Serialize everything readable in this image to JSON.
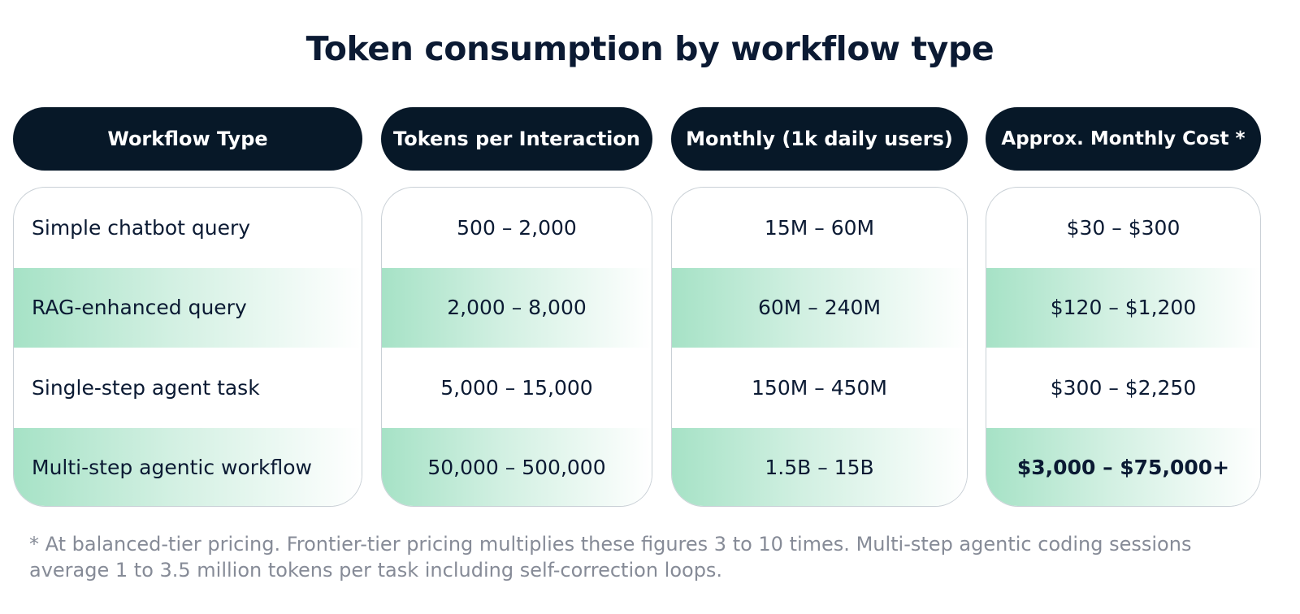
{
  "title": "Token consumption by workflow type",
  "chart_data": {
    "type": "table",
    "title": "Token consumption by workflow type",
    "columns": [
      "Workflow Type",
      "Tokens per Interaction",
      "Monthly (1k daily users)",
      "Approx. Monthly Cost *"
    ],
    "rows": [
      [
        "Simple chatbot query",
        "500 – 2,000",
        "15M – 60M",
        "$30 – $300"
      ],
      [
        "RAG-enhanced query",
        "2,000 – 8,000",
        "60M – 240M",
        "$120 – $1,200"
      ],
      [
        "Single-step agent task",
        "5,000 – 15,000",
        "150M – 450M",
        "$300 – $2,250"
      ],
      [
        "Multi-step agentic workflow",
        "50,000 – 500,000",
        "1.5B – 15B",
        "$3,000 – $75,000+"
      ]
    ]
  },
  "footnote": "* At balanced-tier pricing. Frontier-tier pricing multiplies these figures 3 to 10 times. Multi-step agentic coding sessions average 1 to 3.5 million tokens per task including self-correction loops.",
  "colors": {
    "header_bg": "#071828",
    "row_shade": "#a6e2c6",
    "text": "#0b1a33",
    "footnote": "#868b97"
  }
}
